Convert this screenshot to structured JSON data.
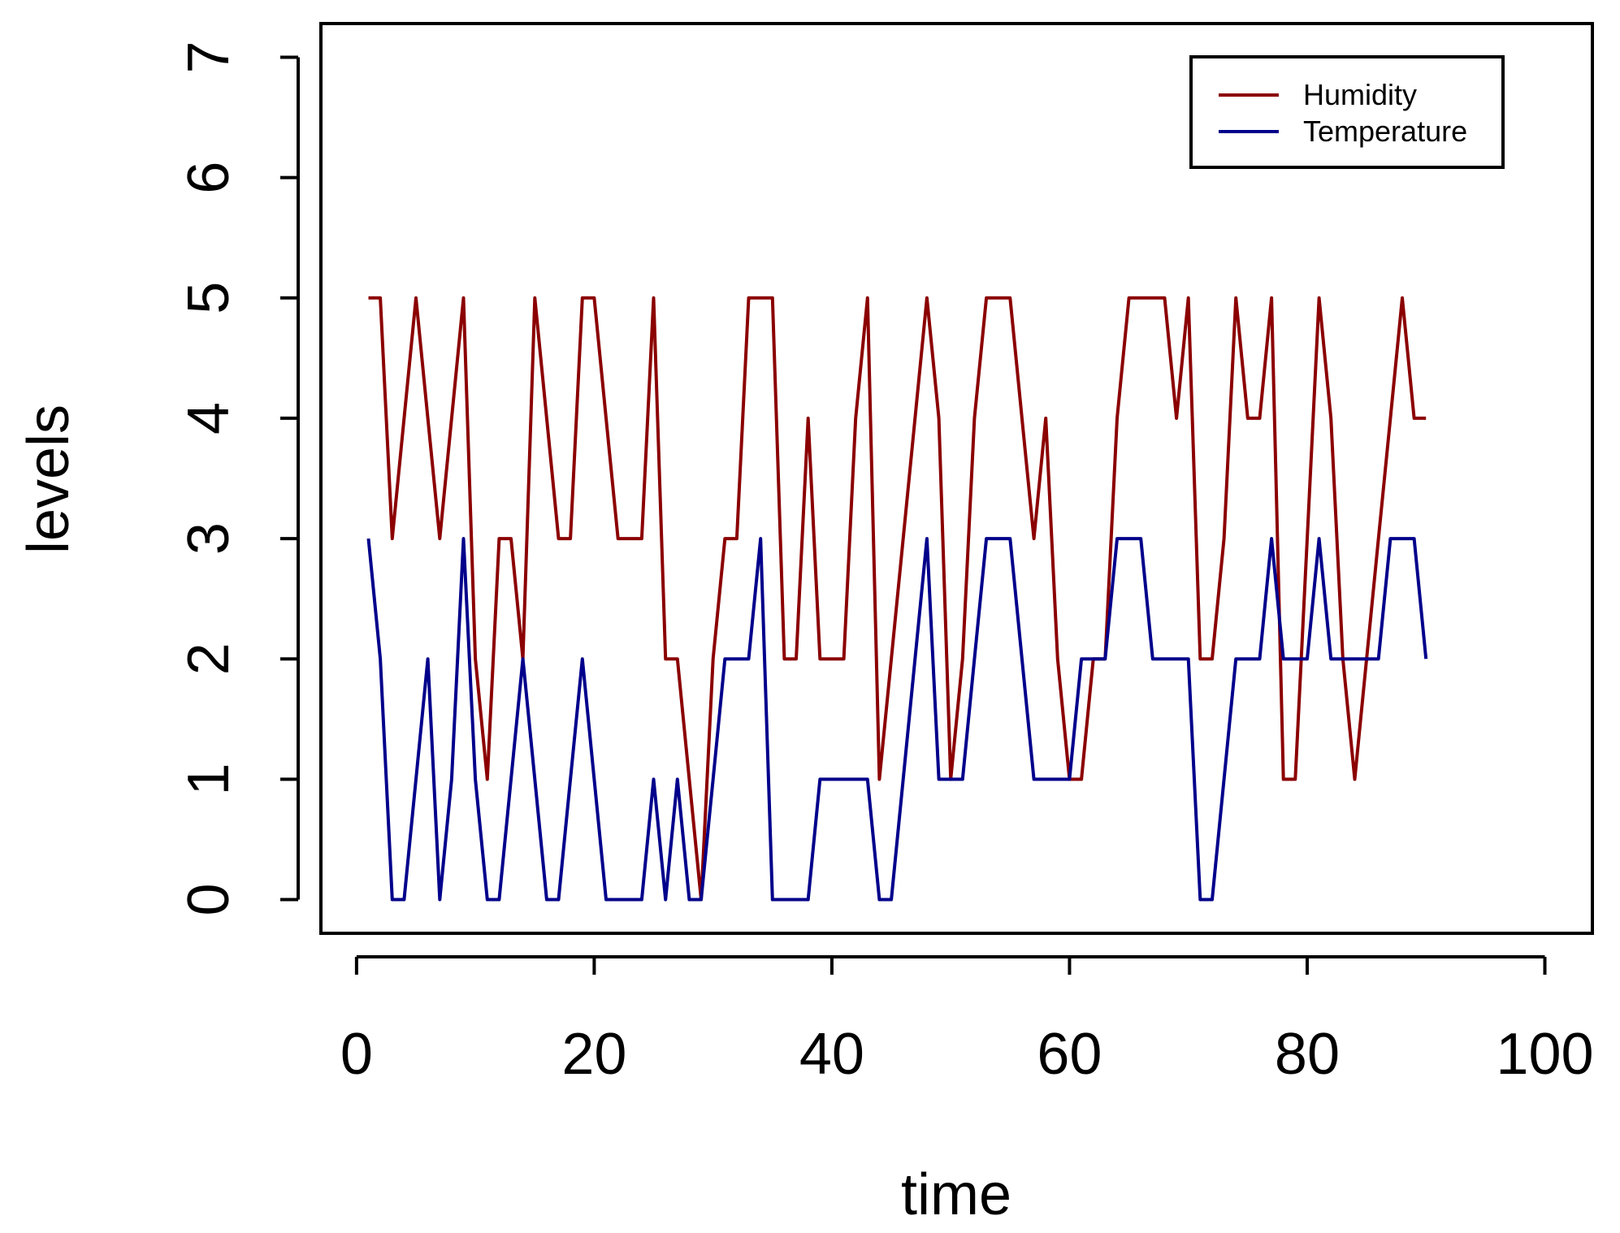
{
  "chart_data": {
    "type": "line",
    "title": "",
    "xlabel": "time",
    "ylabel": "levels",
    "xlim": [
      -3,
      104
    ],
    "ylim": [
      -0.28,
      7.28
    ],
    "x_ticks": [
      0,
      20,
      40,
      60,
      80,
      100
    ],
    "x_tick_labels": [
      "0",
      "20",
      "40",
      "60",
      "80",
      "100"
    ],
    "y_ticks": [
      0,
      1,
      2,
      3,
      4,
      5,
      6,
      7
    ],
    "y_tick_labels": [
      "0",
      "1",
      "2",
      "3",
      "4",
      "5",
      "6",
      "7"
    ],
    "legend_position": "top-right",
    "grid": false,
    "series": [
      {
        "name": "Humidity",
        "color": "#8B0000",
        "x": [
          1,
          2,
          3,
          4,
          5,
          6,
          7,
          8,
          9,
          10,
          11,
          12,
          13,
          14,
          15,
          16,
          17,
          18,
          19,
          20,
          21,
          22,
          23,
          24,
          25,
          26,
          27,
          28,
          29,
          30,
          31,
          32,
          33,
          34,
          35,
          36,
          37,
          38,
          39,
          40,
          41,
          42,
          43,
          44,
          45,
          46,
          47,
          48,
          49,
          50,
          51,
          52,
          53,
          54,
          55,
          56,
          57,
          58,
          59,
          60,
          61,
          62,
          63,
          64,
          65,
          66,
          67,
          68,
          69,
          70,
          71,
          72,
          73,
          74,
          75,
          76,
          77,
          78,
          79,
          80,
          81,
          82,
          83,
          84,
          85,
          86,
          87,
          88,
          89,
          90
        ],
        "values": [
          5,
          5,
          3,
          4,
          5,
          4,
          3,
          4,
          5,
          2,
          1,
          3,
          3,
          2,
          5,
          4,
          3,
          3,
          5,
          5,
          4,
          3,
          3,
          3,
          5,
          2,
          2,
          1,
          0,
          2,
          3,
          3,
          5,
          5,
          5,
          2,
          2,
          4,
          2,
          2,
          2,
          4,
          5,
          1,
          2,
          3,
          4,
          5,
          4,
          1,
          2,
          4,
          5,
          5,
          5,
          4,
          3,
          4,
          2,
          1,
          1,
          2,
          2,
          4,
          5,
          5,
          5,
          5,
          4,
          5,
          2,
          2,
          3,
          5,
          4,
          4,
          5,
          1,
          1,
          3,
          5,
          4,
          2,
          1,
          2,
          3,
          4,
          5,
          4,
          4
        ]
      },
      {
        "name": "Temperature",
        "color": "#00008B",
        "x": [
          1,
          2,
          3,
          4,
          5,
          6,
          7,
          8,
          9,
          10,
          11,
          12,
          13,
          14,
          15,
          16,
          17,
          18,
          19,
          20,
          21,
          22,
          23,
          24,
          25,
          26,
          27,
          28,
          29,
          30,
          31,
          32,
          33,
          34,
          35,
          36,
          37,
          38,
          39,
          40,
          41,
          42,
          43,
          44,
          45,
          46,
          47,
          48,
          49,
          50,
          51,
          52,
          53,
          54,
          55,
          56,
          57,
          58,
          59,
          60,
          61,
          62,
          63,
          64,
          65,
          66,
          67,
          68,
          69,
          70,
          71,
          72,
          73,
          74,
          75,
          76,
          77,
          78,
          79,
          80,
          81,
          82,
          83,
          84,
          85,
          86,
          87,
          88,
          89,
          90
        ],
        "values": [
          3,
          2,
          0,
          0,
          1,
          2,
          0,
          1,
          3,
          1,
          0,
          0,
          1,
          2,
          1,
          0,
          0,
          1,
          2,
          1,
          0,
          0,
          0,
          0,
          1,
          0,
          1,
          0,
          0,
          1,
          2,
          2,
          2,
          3,
          0,
          0,
          0,
          0,
          1,
          1,
          1,
          1,
          1,
          0,
          0,
          1,
          2,
          3,
          1,
          1,
          1,
          2,
          3,
          3,
          3,
          2,
          1,
          1,
          1,
          1,
          2,
          2,
          2,
          3,
          3,
          3,
          2,
          2,
          2,
          2,
          0,
          0,
          1,
          2,
          2,
          2,
          3,
          2,
          2,
          2,
          3,
          2,
          2,
          2,
          2,
          2,
          3,
          3,
          3,
          2
        ]
      }
    ]
  }
}
